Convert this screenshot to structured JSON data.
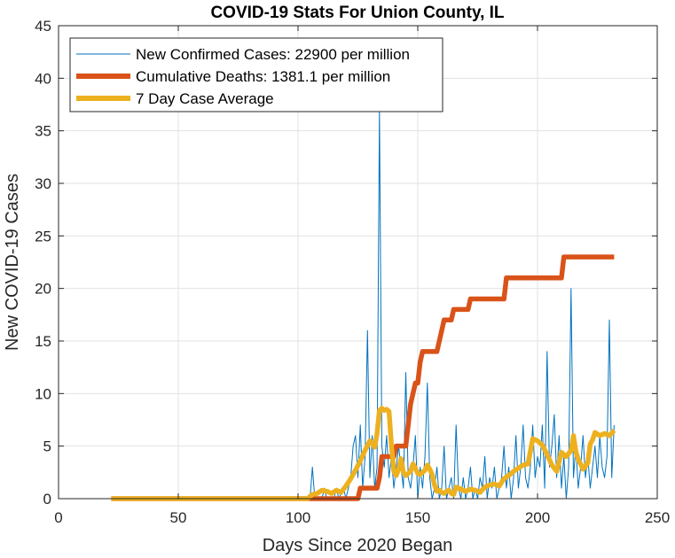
{
  "chart_data": {
    "type": "line",
    "title": "COVID-19 Stats For Union County, IL",
    "xlabel": "Days Since 2020 Began",
    "ylabel": "New COVID-19 Cases",
    "xlim": [
      0,
      250
    ],
    "ylim": [
      0,
      45
    ],
    "xticks": [
      0,
      50,
      100,
      150,
      200,
      250
    ],
    "yticks": [
      0,
      5,
      10,
      15,
      20,
      25,
      30,
      35,
      40,
      45
    ],
    "grid": true,
    "legend_position": "top-left",
    "series": [
      {
        "name": "New Confirmed Cases: 22900 per million",
        "color": "#0072BD",
        "line_width": "thin",
        "points": [
          [
            22,
            0
          ],
          [
            60,
            0
          ],
          [
            100,
            0
          ],
          [
            105,
            0
          ],
          [
            106,
            3
          ],
          [
            107,
            0
          ],
          [
            110,
            0
          ],
          [
            111,
            1
          ],
          [
            112,
            0
          ],
          [
            115,
            0
          ],
          [
            116,
            1
          ],
          [
            117,
            0
          ],
          [
            119,
            1
          ],
          [
            120,
            0
          ],
          [
            122,
            2
          ],
          [
            123,
            5
          ],
          [
            124,
            6
          ],
          [
            125,
            2
          ],
          [
            126,
            7
          ],
          [
            127,
            1
          ],
          [
            128,
            4
          ],
          [
            129,
            16
          ],
          [
            130,
            2
          ],
          [
            131,
            6
          ],
          [
            132,
            1
          ],
          [
            133,
            3
          ],
          [
            134,
            37
          ],
          [
            135,
            5
          ],
          [
            136,
            3
          ],
          [
            137,
            6
          ],
          [
            138,
            2
          ],
          [
            139,
            4
          ],
          [
            140,
            1
          ],
          [
            141,
            3
          ],
          [
            142,
            5
          ],
          [
            143,
            3
          ],
          [
            144,
            1
          ],
          [
            145,
            12
          ],
          [
            146,
            2
          ],
          [
            147,
            1
          ],
          [
            148,
            3
          ],
          [
            149,
            6
          ],
          [
            150,
            0
          ],
          [
            151,
            3
          ],
          [
            152,
            1
          ],
          [
            153,
            4
          ],
          [
            154,
            11
          ],
          [
            155,
            2
          ],
          [
            156,
            0
          ],
          [
            157,
            1
          ],
          [
            158,
            3
          ],
          [
            159,
            0
          ],
          [
            160,
            1
          ],
          [
            161,
            5
          ],
          [
            162,
            0
          ],
          [
            163,
            1
          ],
          [
            164,
            2
          ],
          [
            165,
            0
          ],
          [
            166,
            7
          ],
          [
            167,
            1
          ],
          [
            168,
            0
          ],
          [
            169,
            2
          ],
          [
            170,
            0
          ],
          [
            171,
            1
          ],
          [
            172,
            3
          ],
          [
            173,
            0
          ],
          [
            174,
            1
          ],
          [
            175,
            0
          ],
          [
            176,
            2
          ],
          [
            177,
            1
          ],
          [
            178,
            4
          ],
          [
            179,
            0
          ],
          [
            180,
            2
          ],
          [
            181,
            1
          ],
          [
            182,
            3
          ],
          [
            183,
            0
          ],
          [
            184,
            1
          ],
          [
            185,
            2
          ],
          [
            186,
            5
          ],
          [
            187,
            1
          ],
          [
            188,
            3
          ],
          [
            189,
            0
          ],
          [
            190,
            2
          ],
          [
            191,
            6
          ],
          [
            192,
            1
          ],
          [
            193,
            3
          ],
          [
            194,
            7
          ],
          [
            195,
            2
          ],
          [
            196,
            1
          ],
          [
            197,
            3
          ],
          [
            198,
            7
          ],
          [
            199,
            2
          ],
          [
            200,
            4
          ],
          [
            201,
            3
          ],
          [
            202,
            7
          ],
          [
            203,
            1
          ],
          [
            204,
            14
          ],
          [
            205,
            3
          ],
          [
            206,
            5
          ],
          [
            207,
            8
          ],
          [
            208,
            2
          ],
          [
            209,
            6
          ],
          [
            210,
            1
          ],
          [
            211,
            4
          ],
          [
            212,
            0
          ],
          [
            213,
            3
          ],
          [
            214,
            20
          ],
          [
            215,
            2
          ],
          [
            216,
            5
          ],
          [
            217,
            1
          ],
          [
            218,
            3
          ],
          [
            219,
            6
          ],
          [
            220,
            2
          ],
          [
            221,
            4
          ],
          [
            222,
            1
          ],
          [
            223,
            3
          ],
          [
            224,
            5
          ],
          [
            225,
            2
          ],
          [
            226,
            6
          ],
          [
            227,
            3
          ],
          [
            228,
            2
          ],
          [
            229,
            4
          ],
          [
            230,
            17
          ],
          [
            231,
            2
          ],
          [
            232,
            7
          ]
        ]
      },
      {
        "name": "Cumulative Deaths: 1381.1 per million",
        "color": "#D95319",
        "line_width": "thick",
        "points": [
          [
            22,
            0
          ],
          [
            118,
            0
          ],
          [
            119,
            0
          ],
          [
            124,
            0
          ],
          [
            125,
            0
          ],
          [
            126,
            1
          ],
          [
            133,
            1
          ],
          [
            134,
            2
          ],
          [
            135,
            4
          ],
          [
            140,
            4
          ],
          [
            141,
            5
          ],
          [
            145,
            5
          ],
          [
            146,
            7
          ],
          [
            147,
            9
          ],
          [
            148,
            10
          ],
          [
            149,
            11
          ],
          [
            150,
            11
          ],
          [
            151,
            13
          ],
          [
            152,
            14
          ],
          [
            158,
            14
          ],
          [
            159,
            15
          ],
          [
            160,
            16
          ],
          [
            161,
            17
          ],
          [
            164,
            17
          ],
          [
            165,
            18
          ],
          [
            171,
            18
          ],
          [
            172,
            19
          ],
          [
            186,
            19
          ],
          [
            187,
            21
          ],
          [
            210,
            21
          ],
          [
            211,
            23
          ],
          [
            232,
            23
          ]
        ]
      },
      {
        "name": "7 Day Case Average",
        "color": "#EDB120",
        "line_width": "thick",
        "points": [
          [
            22,
            0
          ],
          [
            104,
            0
          ],
          [
            106,
            0.4
          ],
          [
            108,
            0.5
          ],
          [
            110,
            0.8
          ],
          [
            112,
            0.7
          ],
          [
            114,
            0.5
          ],
          [
            116,
            0.8
          ],
          [
            118,
            0.6
          ],
          [
            120,
            1.2
          ],
          [
            122,
            1.9
          ],
          [
            124,
            2.7
          ],
          [
            126,
            3.6
          ],
          [
            128,
            4.6
          ],
          [
            130,
            5.5
          ],
          [
            132,
            4.9
          ],
          [
            133,
            6.2
          ],
          [
            134,
            8.4
          ],
          [
            135,
            8.6
          ],
          [
            136,
            8.4
          ],
          [
            137,
            8.5
          ],
          [
            138,
            8.3
          ],
          [
            139,
            5.1
          ],
          [
            140,
            2.6
          ],
          [
            141,
            2.2
          ],
          [
            142,
            2.8
          ],
          [
            143,
            3.8
          ],
          [
            144,
            2.5
          ],
          [
            145,
            2.2
          ],
          [
            146,
            2.4
          ],
          [
            147,
            2.6
          ],
          [
            148,
            3.3
          ],
          [
            149,
            2.9
          ],
          [
            150,
            2.4
          ],
          [
            151,
            2.3
          ],
          [
            152,
            2.5
          ],
          [
            153,
            2.7
          ],
          [
            154,
            3.2
          ],
          [
            155,
            2.8
          ],
          [
            156,
            2.3
          ],
          [
            157,
            1.3
          ],
          [
            158,
            0.7
          ],
          [
            159,
            0.8
          ],
          [
            160,
            0.6
          ],
          [
            161,
            0.5
          ],
          [
            162,
            0.7
          ],
          [
            163,
            0.8
          ],
          [
            164,
            0.5
          ],
          [
            165,
            0.4
          ],
          [
            166,
            1.1
          ],
          [
            168,
            0.9
          ],
          [
            170,
            0.7
          ],
          [
            172,
            0.9
          ],
          [
            174,
            0.8
          ],
          [
            176,
            0.6
          ],
          [
            178,
            1.1
          ],
          [
            180,
            1.3
          ],
          [
            182,
            1.4
          ],
          [
            184,
            1.2
          ],
          [
            186,
            1.9
          ],
          [
            188,
            2.2
          ],
          [
            190,
            2.6
          ],
          [
            192,
            2.9
          ],
          [
            194,
            3.2
          ],
          [
            196,
            3.3
          ],
          [
            198,
            5.7
          ],
          [
            200,
            5.5
          ],
          [
            202,
            5.1
          ],
          [
            204,
            4.2
          ],
          [
            206,
            3.2
          ],
          [
            208,
            2.6
          ],
          [
            210,
            4.4
          ],
          [
            212,
            4.0
          ],
          [
            213,
            4.3
          ],
          [
            214,
            4.6
          ],
          [
            215,
            6.0
          ],
          [
            216,
            4.5
          ],
          [
            217,
            3.7
          ],
          [
            218,
            3.3
          ],
          [
            219,
            2.8
          ],
          [
            220,
            3.1
          ],
          [
            221,
            3.4
          ],
          [
            222,
            5.2
          ],
          [
            223,
            5.6
          ],
          [
            224,
            6.3
          ],
          [
            226,
            6.0
          ],
          [
            228,
            6.2
          ],
          [
            230,
            6.0
          ],
          [
            232,
            6.5
          ]
        ]
      }
    ]
  }
}
